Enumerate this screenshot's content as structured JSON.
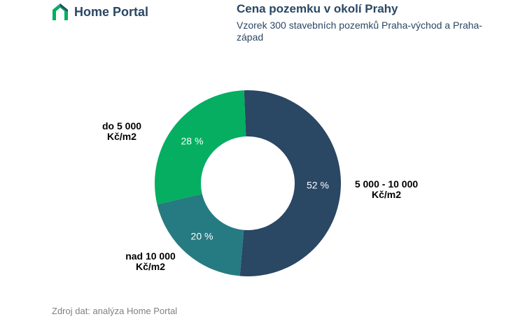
{
  "brand": {
    "name": "Home Portal"
  },
  "header": {
    "title": "Cena pozemku v okolí Prahy",
    "subtitle": "Vzorek 300 stavebních pozemků Praha-východ a Praha-západ"
  },
  "source": "Zdroj dat: analýza Home Portal",
  "chart_data": {
    "type": "pie",
    "donut": true,
    "title": "Cena pozemku v okolí Prahy",
    "subtitle": "Vzorek 300 stavebních pozemků Praha-východ a Praha-západ",
    "slices": [
      {
        "label": [
          "5 000 - 10 000",
          "Kč/m2"
        ],
        "value": 52,
        "value_label": "52 %",
        "color": "#2a4764"
      },
      {
        "label": [
          "nad 10 000",
          "Kč/m2"
        ],
        "value": 20,
        "value_label": "20 %",
        "color": "#267b82"
      },
      {
        "label": [
          "do 5 000",
          "Kč/m2"
        ],
        "value": 28,
        "value_label": "28 %",
        "color": "#06ae61"
      }
    ],
    "legend": "none"
  }
}
